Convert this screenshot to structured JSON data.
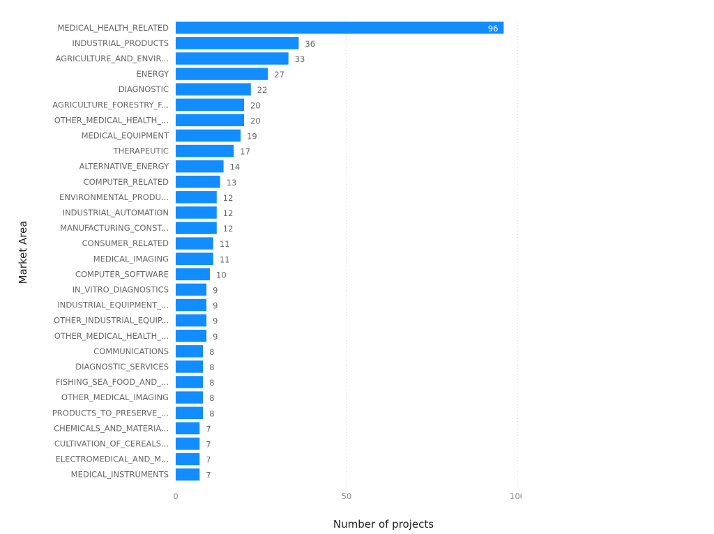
{
  "chart_data": {
    "type": "bar",
    "orientation": "horizontal",
    "xlabel": "Number of projects",
    "ylabel": "Market Area",
    "xlim": [
      0,
      100
    ],
    "xticks": [
      "0",
      "50",
      "100"
    ],
    "grid": "vertical dotted",
    "bar_color": "#118DFF",
    "categories": [
      "MEDICAL_HEALTH_RELATED",
      "INDUSTRIAL_PRODUCTS",
      "AGRICULTURE_AND_ENVIR...",
      "ENERGY",
      "DIAGNOSTIC",
      "AGRICULTURE_FORESTRY_F...",
      "OTHER_MEDICAL_HEALTH_...",
      "MEDICAL_EQUIPMENT",
      "THERAPEUTIC",
      "ALTERNATIVE_ENERGY",
      "COMPUTER_RELATED",
      "ENVIRONMENTAL_PRODU...",
      "INDUSTRIAL_AUTOMATION",
      "MANUFACTURING_CONST...",
      "CONSUMER_RELATED",
      "MEDICAL_IMAGING",
      "COMPUTER_SOFTWARE",
      "IN_VITRO_DIAGNOSTICS",
      "INDUSTRIAL_EQUIPMENT_...",
      "OTHER_INDUSTRIAL_EQUIP...",
      "OTHER_MEDICAL_HEALTH_...",
      "COMMUNICATIONS",
      "DIAGNOSTIC_SERVICES",
      "FISHING_SEA_FOOD_AND_...",
      "OTHER_MEDICAL_IMAGING",
      "PRODUCTS_TO_PRESERVE_...",
      "CHEMICALS_AND_MATERIA...",
      "CULTIVATION_OF_CEREALS...",
      "ELECTROMEDICAL_AND_M...",
      "MEDICAL_INSTRUMENTS"
    ],
    "values": [
      96,
      36,
      33,
      27,
      22,
      20,
      20,
      19,
      17,
      14,
      13,
      12,
      12,
      12,
      11,
      11,
      10,
      9,
      9,
      9,
      9,
      8,
      8,
      8,
      8,
      8,
      7,
      7,
      7,
      7
    ]
  }
}
